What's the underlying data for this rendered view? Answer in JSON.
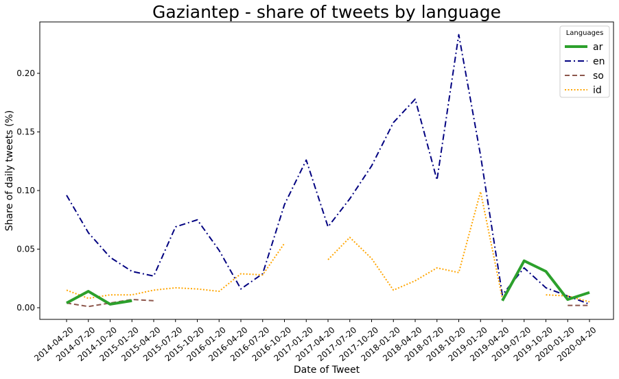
{
  "chart_data": {
    "type": "line",
    "title": "Gaziantep - share of tweets by language",
    "xlabel": "Date of Tweet",
    "ylabel": "Share of daily tweets (%)",
    "categories": [
      "2014-04-20",
      "2014-07-20",
      "2014-10-20",
      "2015-01-20",
      "2015-04-20",
      "2015-07-20",
      "2015-10-20",
      "2016-01-20",
      "2016-04-20",
      "2016-07-20",
      "2016-10-20",
      "2017-01-20",
      "2017-04-20",
      "2017-07-20",
      "2017-10-20",
      "2018-01-20",
      "2018-04-20",
      "2018-07-20",
      "2018-10-20",
      "2019-01-20",
      "2019-04-20",
      "2019-07-20",
      "2019-10-20",
      "2020-01-20",
      "2020-04-20"
    ],
    "ylim": [
      -0.01,
      0.245
    ],
    "yticks": [
      0.0,
      0.05,
      0.1,
      0.15,
      0.2
    ],
    "ytick_labels": [
      "0.00",
      "0.05",
      "0.10",
      "0.15",
      "0.20"
    ],
    "grid": false,
    "legend": {
      "title": "Languages",
      "placement": "top-right"
    },
    "series": [
      {
        "name": "ar",
        "color": "#2ca02c",
        "style": "solid",
        "values": [
          0.004,
          0.014,
          0.003,
          0.006,
          null,
          null,
          null,
          null,
          null,
          null,
          null,
          null,
          null,
          null,
          null,
          null,
          null,
          null,
          null,
          null,
          0.006,
          0.04,
          0.031,
          0.007,
          0.013
        ]
      },
      {
        "name": "en",
        "color": "#000080",
        "style": "dashdot",
        "values": [
          0.096,
          0.064,
          0.043,
          0.031,
          0.027,
          0.069,
          0.075,
          0.049,
          0.016,
          0.029,
          0.088,
          0.126,
          0.069,
          0.093,
          0.121,
          0.158,
          0.178,
          0.109,
          0.233,
          0.13,
          0.011,
          0.034,
          0.017,
          0.01,
          0.003
        ]
      },
      {
        "name": "so",
        "color": "#8c564b",
        "style": "dashed",
        "values": [
          0.004,
          0.001,
          0.004,
          0.007,
          0.006,
          null,
          null,
          null,
          null,
          null,
          null,
          null,
          null,
          null,
          null,
          null,
          null,
          null,
          null,
          null,
          null,
          null,
          null,
          0.002,
          0.002
        ]
      },
      {
        "name": "id",
        "color": "#ffa500",
        "style": "dotted",
        "values": [
          0.015,
          0.008,
          0.011,
          0.011,
          0.015,
          0.017,
          0.016,
          0.014,
          0.029,
          0.028,
          0.055,
          null,
          0.041,
          0.06,
          0.042,
          0.015,
          0.023,
          0.034,
          0.03,
          0.099,
          0.008,
          null,
          0.011,
          0.01,
          0.005
        ]
      }
    ]
  }
}
